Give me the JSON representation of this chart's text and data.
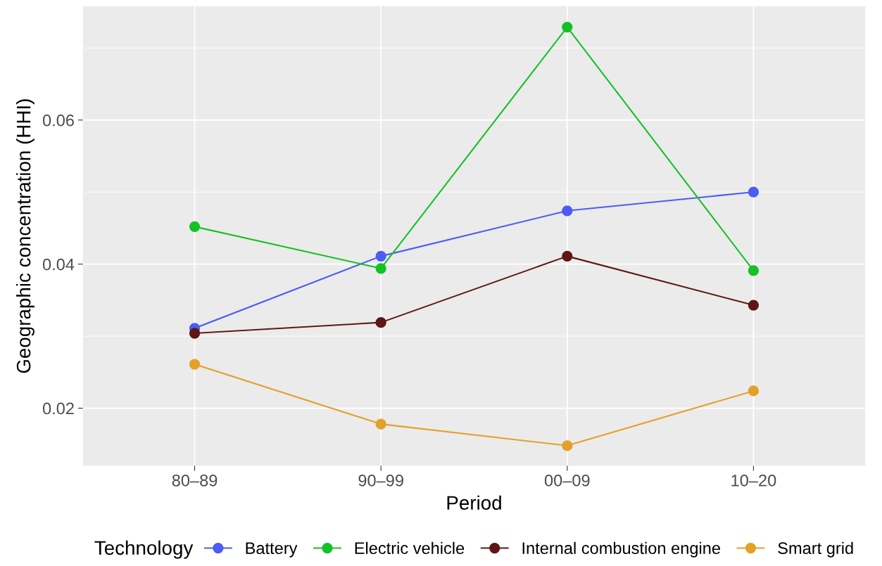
{
  "chart_data": {
    "type": "line",
    "xlabel": "Period",
    "ylabel": "Geographic concentration (HHI)",
    "legend_title": "Technology",
    "categories": [
      "80–89",
      "90–99",
      "00–09",
      "10–20"
    ],
    "series": [
      {
        "name": "Battery",
        "color": "#4d5cf5",
        "values": [
          0.0311,
          0.0411,
          0.0474,
          0.05
        ]
      },
      {
        "name": "Electric vehicle",
        "color": "#16c126",
        "values": [
          0.0452,
          0.0394,
          0.0729,
          0.0391
        ]
      },
      {
        "name": "Internal combustion engine",
        "color": "#5e1716",
        "values": [
          0.0304,
          0.0319,
          0.0411,
          0.0343
        ]
      },
      {
        "name": "Smart grid",
        "color": "#e4a128",
        "values": [
          0.0261,
          0.0178,
          0.0148,
          0.0224
        ]
      }
    ],
    "ylim": [
      0.012,
      0.0758
    ],
    "yticks": [
      {
        "value": 0.02,
        "label": "0.02"
      },
      {
        "value": 0.04,
        "label": "0.04"
      },
      {
        "value": 0.06,
        "label": "0.06"
      }
    ],
    "grid": true,
    "legend": "bottom",
    "marker": "circle",
    "line_style": "solid"
  }
}
